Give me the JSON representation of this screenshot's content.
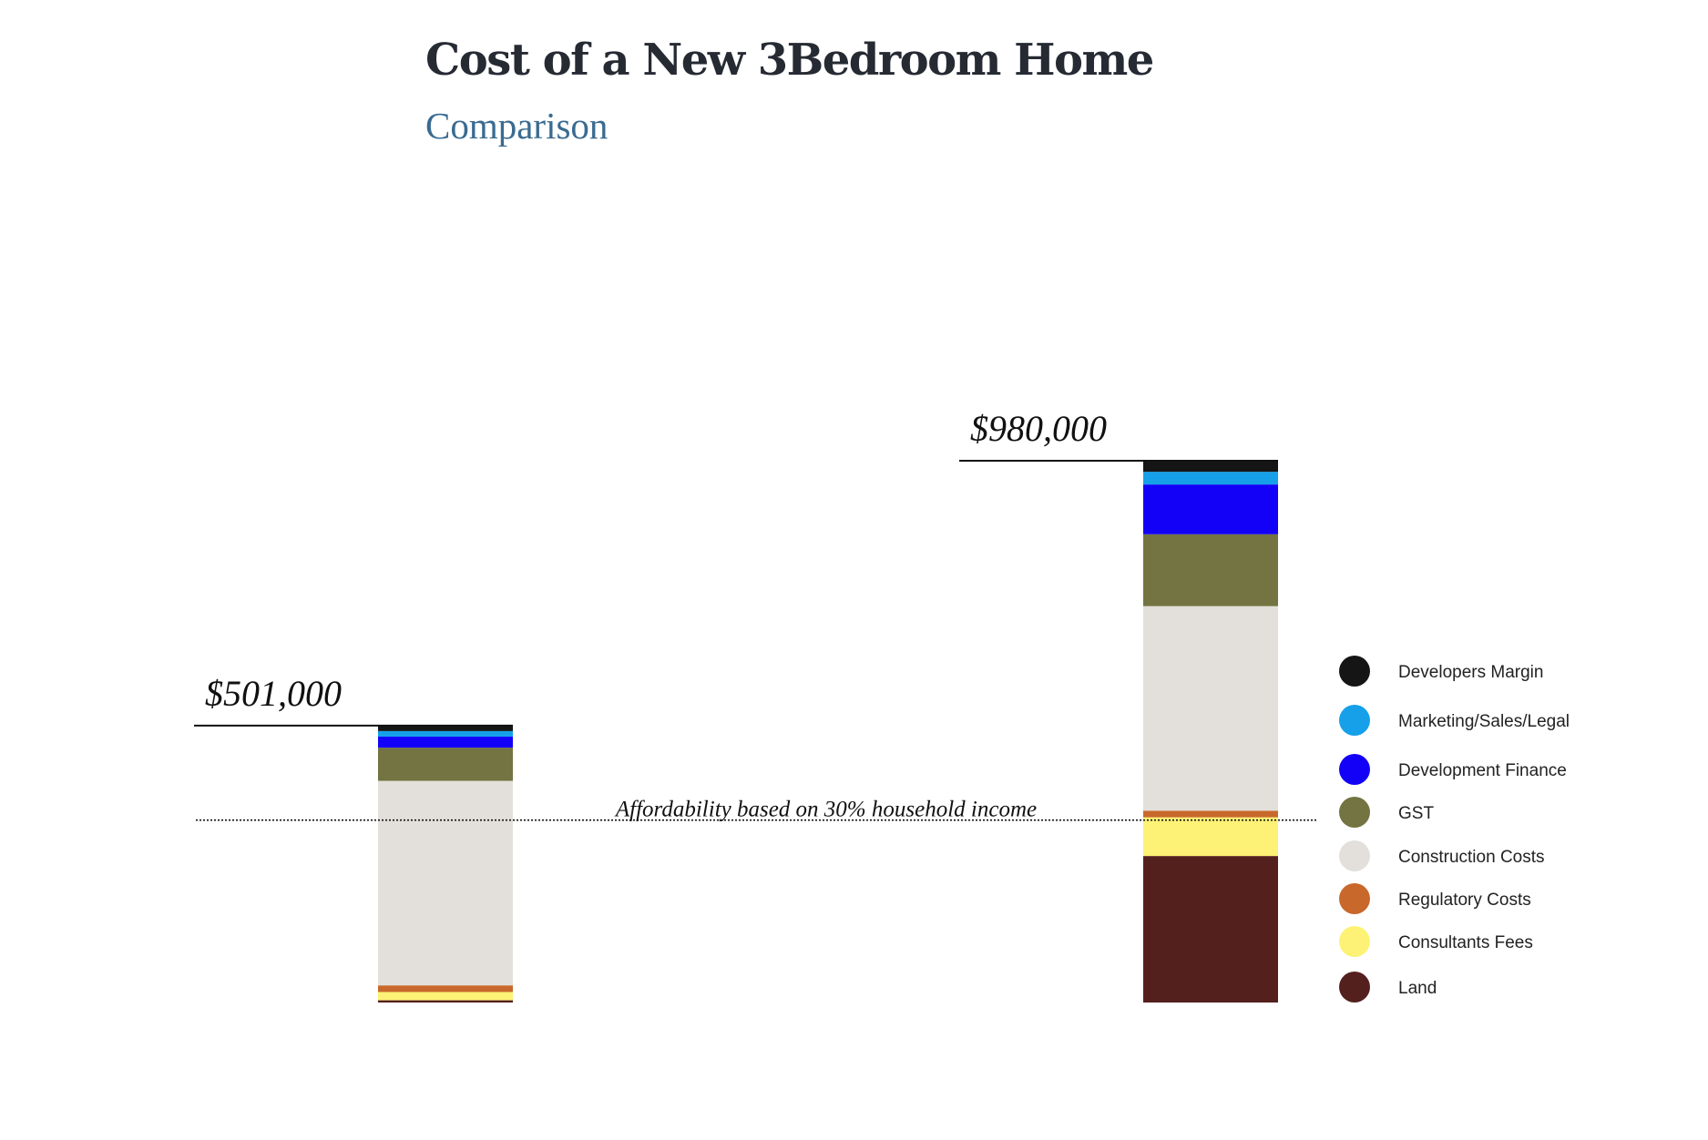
{
  "header": {
    "title": "Cost of a New 3Bedroom Home",
    "subtitle": "Comparison"
  },
  "chart_data": {
    "type": "bar",
    "stacked": true,
    "categories": [
      "",
      ""
    ],
    "totals": [
      501000,
      980000
    ],
    "total_labels": [
      "$501,000",
      "$980,000"
    ],
    "ylim": [
      0,
      980000
    ],
    "affordability": {
      "label": "Affordability based on 30% household income",
      "value": 330000
    },
    "legend_position": "right",
    "series": [
      {
        "name": "Land",
        "color": "#54201d",
        "values": [
          4000,
          265000
        ]
      },
      {
        "name": "Consultants Fees",
        "color": "#fdf275",
        "values": [
          15000,
          70000
        ]
      },
      {
        "name": "Regulatory Costs",
        "color": "#c8682b",
        "values": [
          12000,
          12000
        ]
      },
      {
        "name": "Construction Costs",
        "color": "#e3e0db",
        "values": [
          370000,
          370000
        ]
      },
      {
        "name": "GST",
        "color": "#737441",
        "values": [
          60000,
          130000
        ]
      },
      {
        "name": "Development Finance",
        "color": "#1300f7",
        "values": [
          20000,
          90000
        ]
      },
      {
        "name": "Marketing/Sales/Legal",
        "color": "#15a0e9",
        "values": [
          10000,
          23000
        ]
      },
      {
        "name": "Developers Margin",
        "color": "#151515",
        "values": [
          10000,
          20000
        ]
      }
    ]
  }
}
